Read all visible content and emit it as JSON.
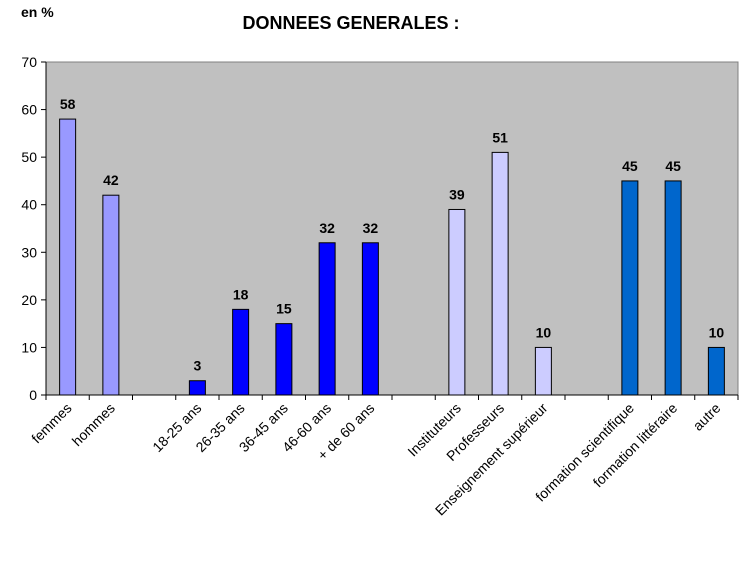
{
  "chart_data": {
    "type": "bar",
    "title": "DONNEES GENERALES :",
    "unit_label": "en %",
    "ylim": [
      0,
      70
    ],
    "yticks": [
      0,
      10,
      20,
      30,
      40,
      50,
      60,
      70
    ],
    "grid": false,
    "legend": "none",
    "plot_background": "#c0c0c0",
    "categories": [
      {
        "label": "femmes",
        "value": 58,
        "color": "#9999ff"
      },
      {
        "label": "hommes",
        "value": 42,
        "color": "#9999ff"
      },
      {
        "label": "",
        "value": null,
        "color": ""
      },
      {
        "label": "18-25 ans",
        "value": 3,
        "color": "#0000ff"
      },
      {
        "label": "26-35 ans",
        "value": 18,
        "color": "#0000ff"
      },
      {
        "label": "36-45 ans",
        "value": 15,
        "color": "#0000ff"
      },
      {
        "label": "46-60 ans",
        "value": 32,
        "color": "#0000ff"
      },
      {
        "label": "+ de 60 ans",
        "value": 32,
        "color": "#0000ff"
      },
      {
        "label": "",
        "value": null,
        "color": ""
      },
      {
        "label": "Instituteurs",
        "value": 39,
        "color": "#ccccff"
      },
      {
        "label": "Professeurs",
        "value": 51,
        "color": "#ccccff"
      },
      {
        "label": "Enseignement supérieur",
        "value": 10,
        "color": "#ccccff"
      },
      {
        "label": "",
        "value": null,
        "color": ""
      },
      {
        "label": "formation scientifique",
        "value": 45,
        "color": "#0066cc"
      },
      {
        "label": "formation littéraire",
        "value": 45,
        "color": "#0066cc"
      },
      {
        "label": "autre",
        "value": 10,
        "color": "#0066cc"
      }
    ]
  }
}
